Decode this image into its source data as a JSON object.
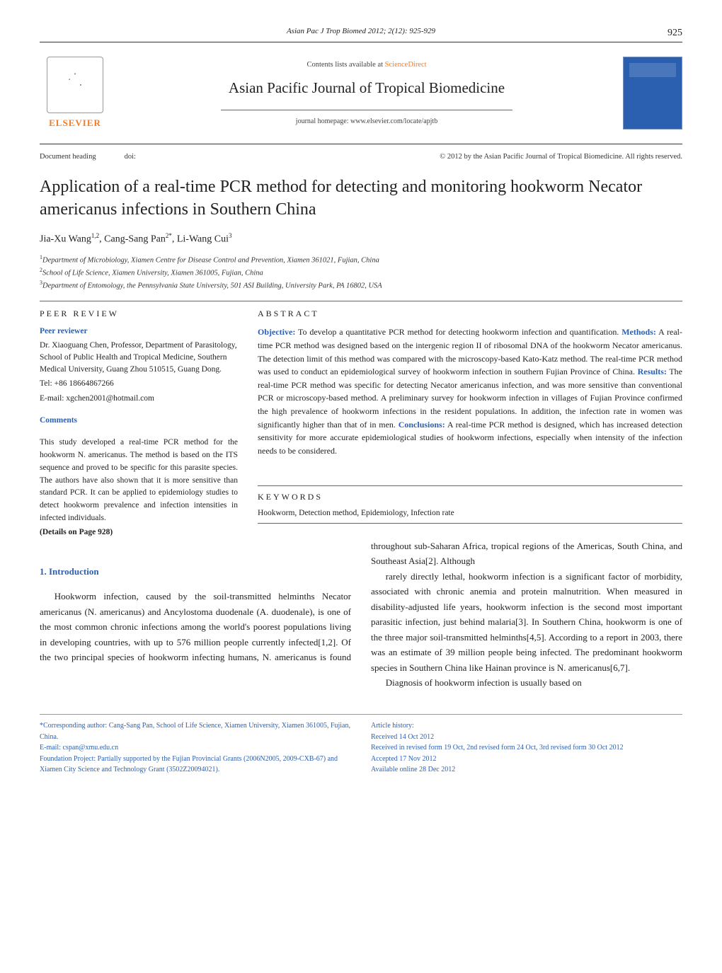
{
  "page_number": "925",
  "citation_line": "Asian Pac J Trop Biomed 2012; 2(12): 925-929",
  "masthead": {
    "publisher": "ELSEVIER",
    "contents_prefix": "Contents lists available at ",
    "contents_link": "ScienceDirect",
    "journal_name": "Asian Pacific Journal of Tropical Biomedicine",
    "homepage": "journal homepage: www.elsevier.com/locate/apjtb"
  },
  "doc_row": {
    "left": "Document heading",
    "doi": "doi:",
    "right": "© 2012 by the Asian Pacific Journal of Tropical Biomedicine. All rights reserved."
  },
  "title": "Application of a real-time PCR method for detecting and monitoring hookworm Necator americanus infections in Southern China",
  "authors_html": "Jia-Xu Wang<sup>1,2</sup>, Cang-Sang Pan<sup>2*</sup>, Li-Wang Cui<sup>3</sup>",
  "affiliations": [
    "1Department of Microbiology, Xiamen Centre for Disease Control and Prevention, Xiamen 361021, Fujian, China",
    "2School of Life Science, Xiamen University, Xiamen 361005, Fujian, China",
    "3Department of Entomology, the Pennsylvania State University, 501 ASI Building, University Park, PA 16802, USA"
  ],
  "peer": {
    "section": "PEER REVIEW",
    "reviewer_head": "Peer reviewer",
    "reviewer_lines": [
      "Dr. Xiaoguang Chen, Professor, Department of Parasitology, School of Public Health and Tropical Medicine, Southern Medical University, Guang Zhou 510515, Guang Dong.",
      "Tel: +86 18664867266",
      "E-mail: xgchen2001@hotmail.com"
    ],
    "comments_head": "Comments",
    "comments": "This study developed a real-time PCR method for the hookworm N. americanus. The method is based on the ITS sequence and proved to be specific for this parasite species. The authors have also shown that it is more sensitive than standard PCR. It can be applied to epidemiology studies to detect hookworm prevalence and infection intensities in infected individuals.",
    "details": "(Details on Page 928)"
  },
  "abstract": {
    "section": "ABSTRACT",
    "labels": {
      "objective": "Objective:",
      "methods": "Methods:",
      "results": "Results:",
      "conclusions": "Conclusions:"
    },
    "objective": " To develop a quantitative PCR method for detecting hookworm infection and quantification. ",
    "methods": " A real-time PCR method was designed based on the intergenic region II of ribosomal DNA of the hookworm Necator americanus. The detection limit of this method was compared with the microscopy-based Kato-Katz method. The real-time PCR method was used to conduct an epidemiological survey of hookworm infection in southern Fujian Province of China. ",
    "results": " The real-time PCR method was specific for detecting Necator americanus infection, and was more sensitive than conventional PCR or microscopy-based method. A preliminary survey for hookworm infection in villages of Fujian Province confirmed the high prevalence of hookworm infections in the resident populations. In addition, the infection rate in women was significantly higher than that of in men. ",
    "conclusions": " A real-time PCR method is designed, which has increased detection sensitivity for more accurate epidemiological studies of hookworm infections, especially when intensity of the infection needs to be considered."
  },
  "keywords": {
    "section": "KEYWORDS",
    "text": "Hookworm, Detection method, Epidemiology, Infection rate"
  },
  "introduction": {
    "head": "1. Introduction",
    "para1": "Hookworm infection, caused by the soil-transmitted helminths Necator americanus (N. americanus) and Ancylostoma duodenale (A. duodenale), is one of the most common chronic infections among the world's poorest populations living in developing countries, with up to 576 million people currently infected[1,2]. Of the two principal species of hookworm infecting humans, N. americanus is found throughout sub-Saharan Africa, tropical regions of the Americas, South China, and Southeast Asia[2]. Although",
    "para2": "rarely directly lethal, hookworm infection is a significant factor of morbidity, associated with chronic anemia and protein malnutrition. When measured in disability-adjusted life years, hookworm infection is the second most important parasitic infection, just behind malaria[3]. In Southern China, hookworm is one of the three major soil-transmitted helminths[4,5]. According to a report in 2003, there was an estimate of 39 million people being infected. The predominant hookworm species in Southern China like Hainan province is N. americanus[6,7].",
    "para3": "Diagnosis of hookworm infection is usually based on"
  },
  "footnotes": {
    "left": [
      "*Corresponding author: Cang-Sang Pan, School of Life Science, Xiamen University, Xiamen 361005, Fujian, China.",
      "E-mail: cspan@xmu.edu.cn",
      "Foundation Project: Partially supported by the Fujian Provincial Grants (2006N2005, 2009-CXB-67) and Xiamen City Science and Technology Grant (3502Z20094021)."
    ],
    "right": [
      "Article history:",
      "Received 14 Oct 2012",
      "Received in revised form 19 Oct, 2nd revised form 24 Oct, 3rd revised form 30 Oct 2012",
      "Accepted 17 Nov 2012",
      "Available online 28 Dec 2012"
    ]
  },
  "colors": {
    "accent_blue": "#2b5fb0",
    "accent_orange": "#f47b20"
  }
}
